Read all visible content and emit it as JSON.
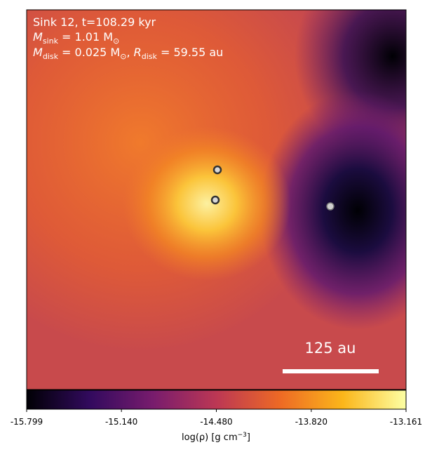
{
  "chart_data": {
    "type": "heatmap",
    "title": "Sink 12, t=108.29 kyr",
    "mass_line": {
      "symbol": "M",
      "subscript": "sink",
      "text": " = 1.01 M",
      "unit_subscript": "⊙"
    },
    "disk_line": {
      "symbol": "M",
      "subscript": "disk",
      "text": " = 0.025 M",
      "unit_subscript": "⊙",
      "separator": ", ",
      "symbol2": "R",
      "subscript2": "disk",
      "text2": " = 59.55 au"
    },
    "scale_bar_label": "125 au",
    "colorbar": {
      "label": "log(ρ) [g cm",
      "label_exponent": "−3",
      "label_end": "]",
      "lim": [
        -15.799,
        -13.161
      ],
      "ticks": [
        -15.799,
        {
          "value": -15.14,
          "label": "-15.140"
        },
        {
          "value": -14.48,
          "label": "-14.480"
        },
        {
          "value": -13.82,
          "label": "-13.820"
        },
        -13.161
      ],
      "colors": [
        "#000004",
        "#320a5e",
        "#781c6d",
        "#bc3754",
        "#ed6925",
        "#fbb61a",
        "#fcffa4"
      ]
    }
  }
}
